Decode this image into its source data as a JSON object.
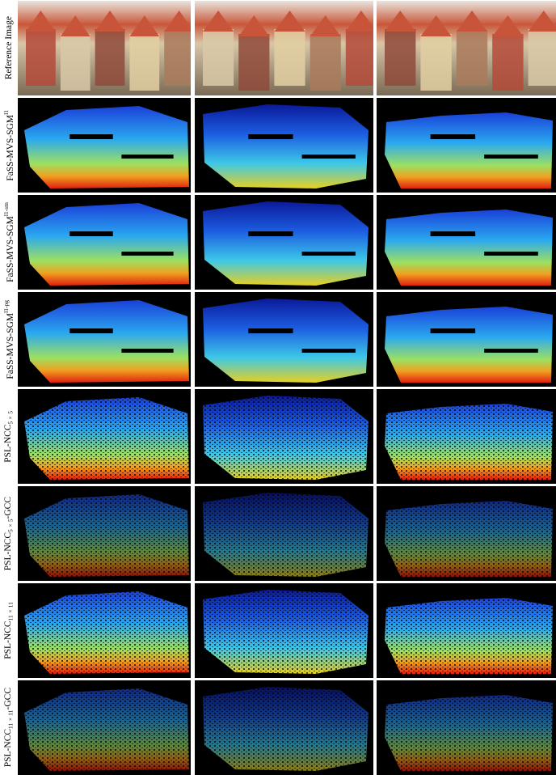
{
  "rows": [
    {
      "label": {
        "text": "Reference Image"
      }
    },
    {
      "label": {
        "text": "FaSS-MVS-SGM",
        "sup": "l1"
      }
    },
    {
      "label": {
        "text": "FaSS-MVS-SGM",
        "sup": "l1-sm"
      }
    },
    {
      "label": {
        "text": "FaSS-MVS-SGM",
        "sup": "l1-pg"
      }
    },
    {
      "label": {
        "text": "PSL-NCC",
        "sub": "5×5"
      }
    },
    {
      "label": {
        "text": "PSL-NCC",
        "sub": "5×5",
        "suffix": "-GCC"
      }
    },
    {
      "label": {
        "text": "PSL-NCC",
        "sub": "11×11"
      }
    },
    {
      "label": {
        "text": "PSL-NCC",
        "sub": "11×11",
        "suffix": "-GCC"
      }
    }
  ]
}
